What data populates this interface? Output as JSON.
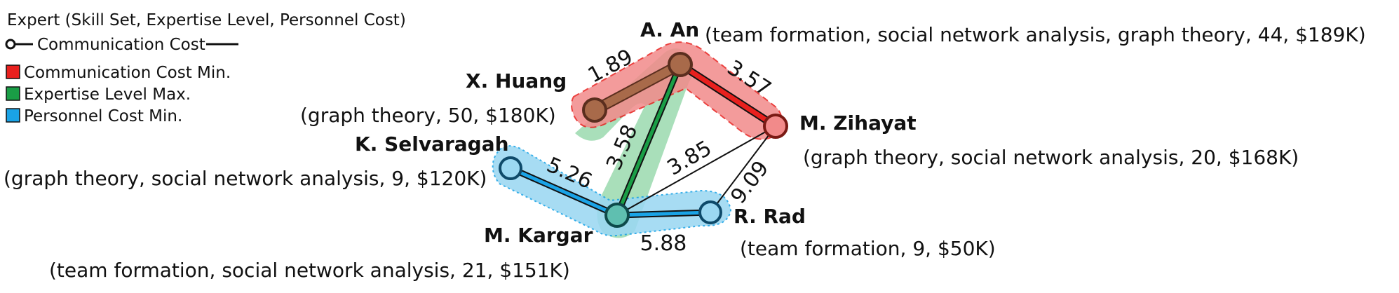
{
  "legend": {
    "title": "Expert (Skill Set, Expertise Level, Personnel Cost)",
    "comm_label": "Communication Cost",
    "items": [
      {
        "label": "Communication Cost Min.",
        "color": "#e8201e"
      },
      {
        "label": "Expertise Level Max.",
        "color": "#1a9e46"
      },
      {
        "label": "Personnel Cost Min.",
        "color": "#1aa3e6"
      }
    ]
  },
  "nodes": {
    "an": {
      "name": "A. An",
      "attrs": "(team formation, social network analysis, graph theory, 44, $189K)"
    },
    "huang": {
      "name": "X. Huang",
      "attrs": "(graph theory, 50, $180K)"
    },
    "zihayat": {
      "name": "M. Zihayat",
      "attrs": "(graph theory, social network analysis, 20, $168K)"
    },
    "selva": {
      "name": "K. Selvaragah",
      "attrs": "(graph theory, social network analysis, 9, $120K)"
    },
    "kargar": {
      "name": "M. Kargar",
      "attrs": "(team formation, social network analysis, 21, $151K)"
    },
    "rad": {
      "name": "R. Rad",
      "attrs": "(team formation, 9, $50K)"
    }
  },
  "edges": [
    {
      "id": "huang-an",
      "weight": "1.89"
    },
    {
      "id": "an-zihayat",
      "weight": "3.57"
    },
    {
      "id": "an-kargar",
      "weight": "3.58"
    },
    {
      "id": "zihayat-kargar",
      "weight": "3.85"
    },
    {
      "id": "zihayat-rad",
      "weight": "9.09"
    },
    {
      "id": "selva-kargar",
      "weight": "5.26"
    },
    {
      "id": "kargar-rad",
      "weight": "5.88"
    }
  ],
  "colors": {
    "red_fill": "#f28a8a",
    "red_line": "#e8201e",
    "green_fill": "#9ad9ae",
    "green_line": "#1a9e46",
    "blue_fill": "#9bd8f2",
    "blue_line": "#1aa3e6",
    "brown_node": "#a86a4a",
    "brown_stroke": "#5a2e1e"
  }
}
